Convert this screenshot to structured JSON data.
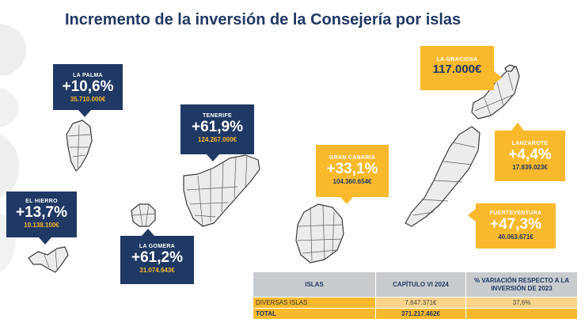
{
  "title": "Incremento de la inversión de la Consejería por islas",
  "islands": [
    {
      "name": "LA PALMA",
      "percent": "+10,6%",
      "amount": "35.710.000€"
    },
    {
      "name": "TENERIFE",
      "percent": "+61,9%",
      "amount": "124.267.000€"
    },
    {
      "name": "EL HIERRO",
      "percent": "+13,7%",
      "amount": "10.138.100€"
    },
    {
      "name": "LA GOMERA",
      "percent": "+61,2%",
      "amount": "31.074.643€"
    },
    {
      "name": "GRAN CANARIA",
      "percent": "+33,1%",
      "amount": "104.360.654€"
    },
    {
      "name": "LA GRACIOSA",
      "amount": "117.000€"
    },
    {
      "name": "LANZAROTE",
      "percent": "+4,4%",
      "amount": "17.839.023€"
    },
    {
      "name": "FUERTEVENTURA",
      "percent": "+47,3%",
      "amount": "40.063.671€"
    }
  ],
  "table": {
    "headers": [
      "ISLAS",
      "CAPÍTULO VI 2024",
      "% VARIACIÓN RESPECTO A LA INVERSIÓN DE 2023"
    ],
    "rows": [
      [
        "DIVERSAS ISLAS",
        "7.647.371€",
        "37,6%"
      ],
      [
        "TOTAL",
        "371.217.462€",
        ""
      ]
    ]
  },
  "colors": {
    "navy": "#1f3864",
    "gold": "#f9b92d",
    "header_gray": "#c9cccf"
  }
}
